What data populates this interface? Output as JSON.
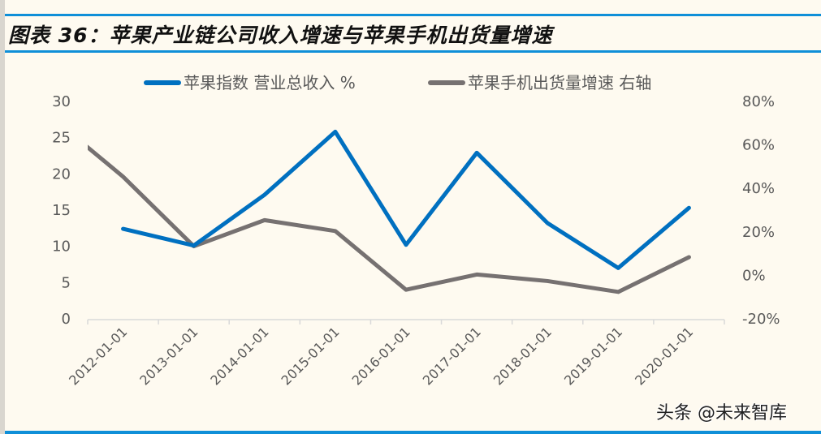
{
  "header": {
    "title": "图表 36：苹果产业链公司收入增速与苹果手机出货量增速"
  },
  "watermark": "头条 @未来智库",
  "colors": {
    "background": "#fefaf0",
    "rule": "#0f8fd8",
    "series_blue": "#0070c0",
    "series_gray": "#767171",
    "axis": "#d9d9d9",
    "tick_text": "#595959"
  },
  "chart_data": {
    "type": "line",
    "title": "图表 36：苹果产业链公司收入增速与苹果手机出货量增速",
    "xlabel": "",
    "ylabel": "",
    "ylabel_right": "",
    "categories": [
      "2012-01-01",
      "2013-01-01",
      "2014-01-01",
      "2015-01-01",
      "2016-01-01",
      "2017-01-01",
      "2018-01-01",
      "2019-01-01",
      "2020-01-01"
    ],
    "ylim": [
      0,
      30
    ],
    "yticks": [
      "0",
      "5",
      "10",
      "15",
      "20",
      "25",
      "30"
    ],
    "ylim_right": [
      -20,
      80
    ],
    "yticks_right": [
      "-20%",
      "0%",
      "20%",
      "40%",
      "60%",
      "80%"
    ],
    "grid": false,
    "legend_position": "top",
    "series": [
      {
        "name": "苹果指数 营业总收入 %",
        "axis": "left",
        "color": "#0070c0",
        "values": [
          12.3,
          10.0,
          17.0,
          25.7,
          10.1,
          22.8,
          13.1,
          6.9,
          15.2
        ]
      },
      {
        "name": "苹果手机出货量增速 右轴",
        "axis": "right",
        "color": "#767171",
        "leading_clipped_value": 72,
        "values": [
          45,
          13,
          25,
          20,
          -7,
          0,
          -3,
          -8,
          8
        ]
      }
    ]
  }
}
